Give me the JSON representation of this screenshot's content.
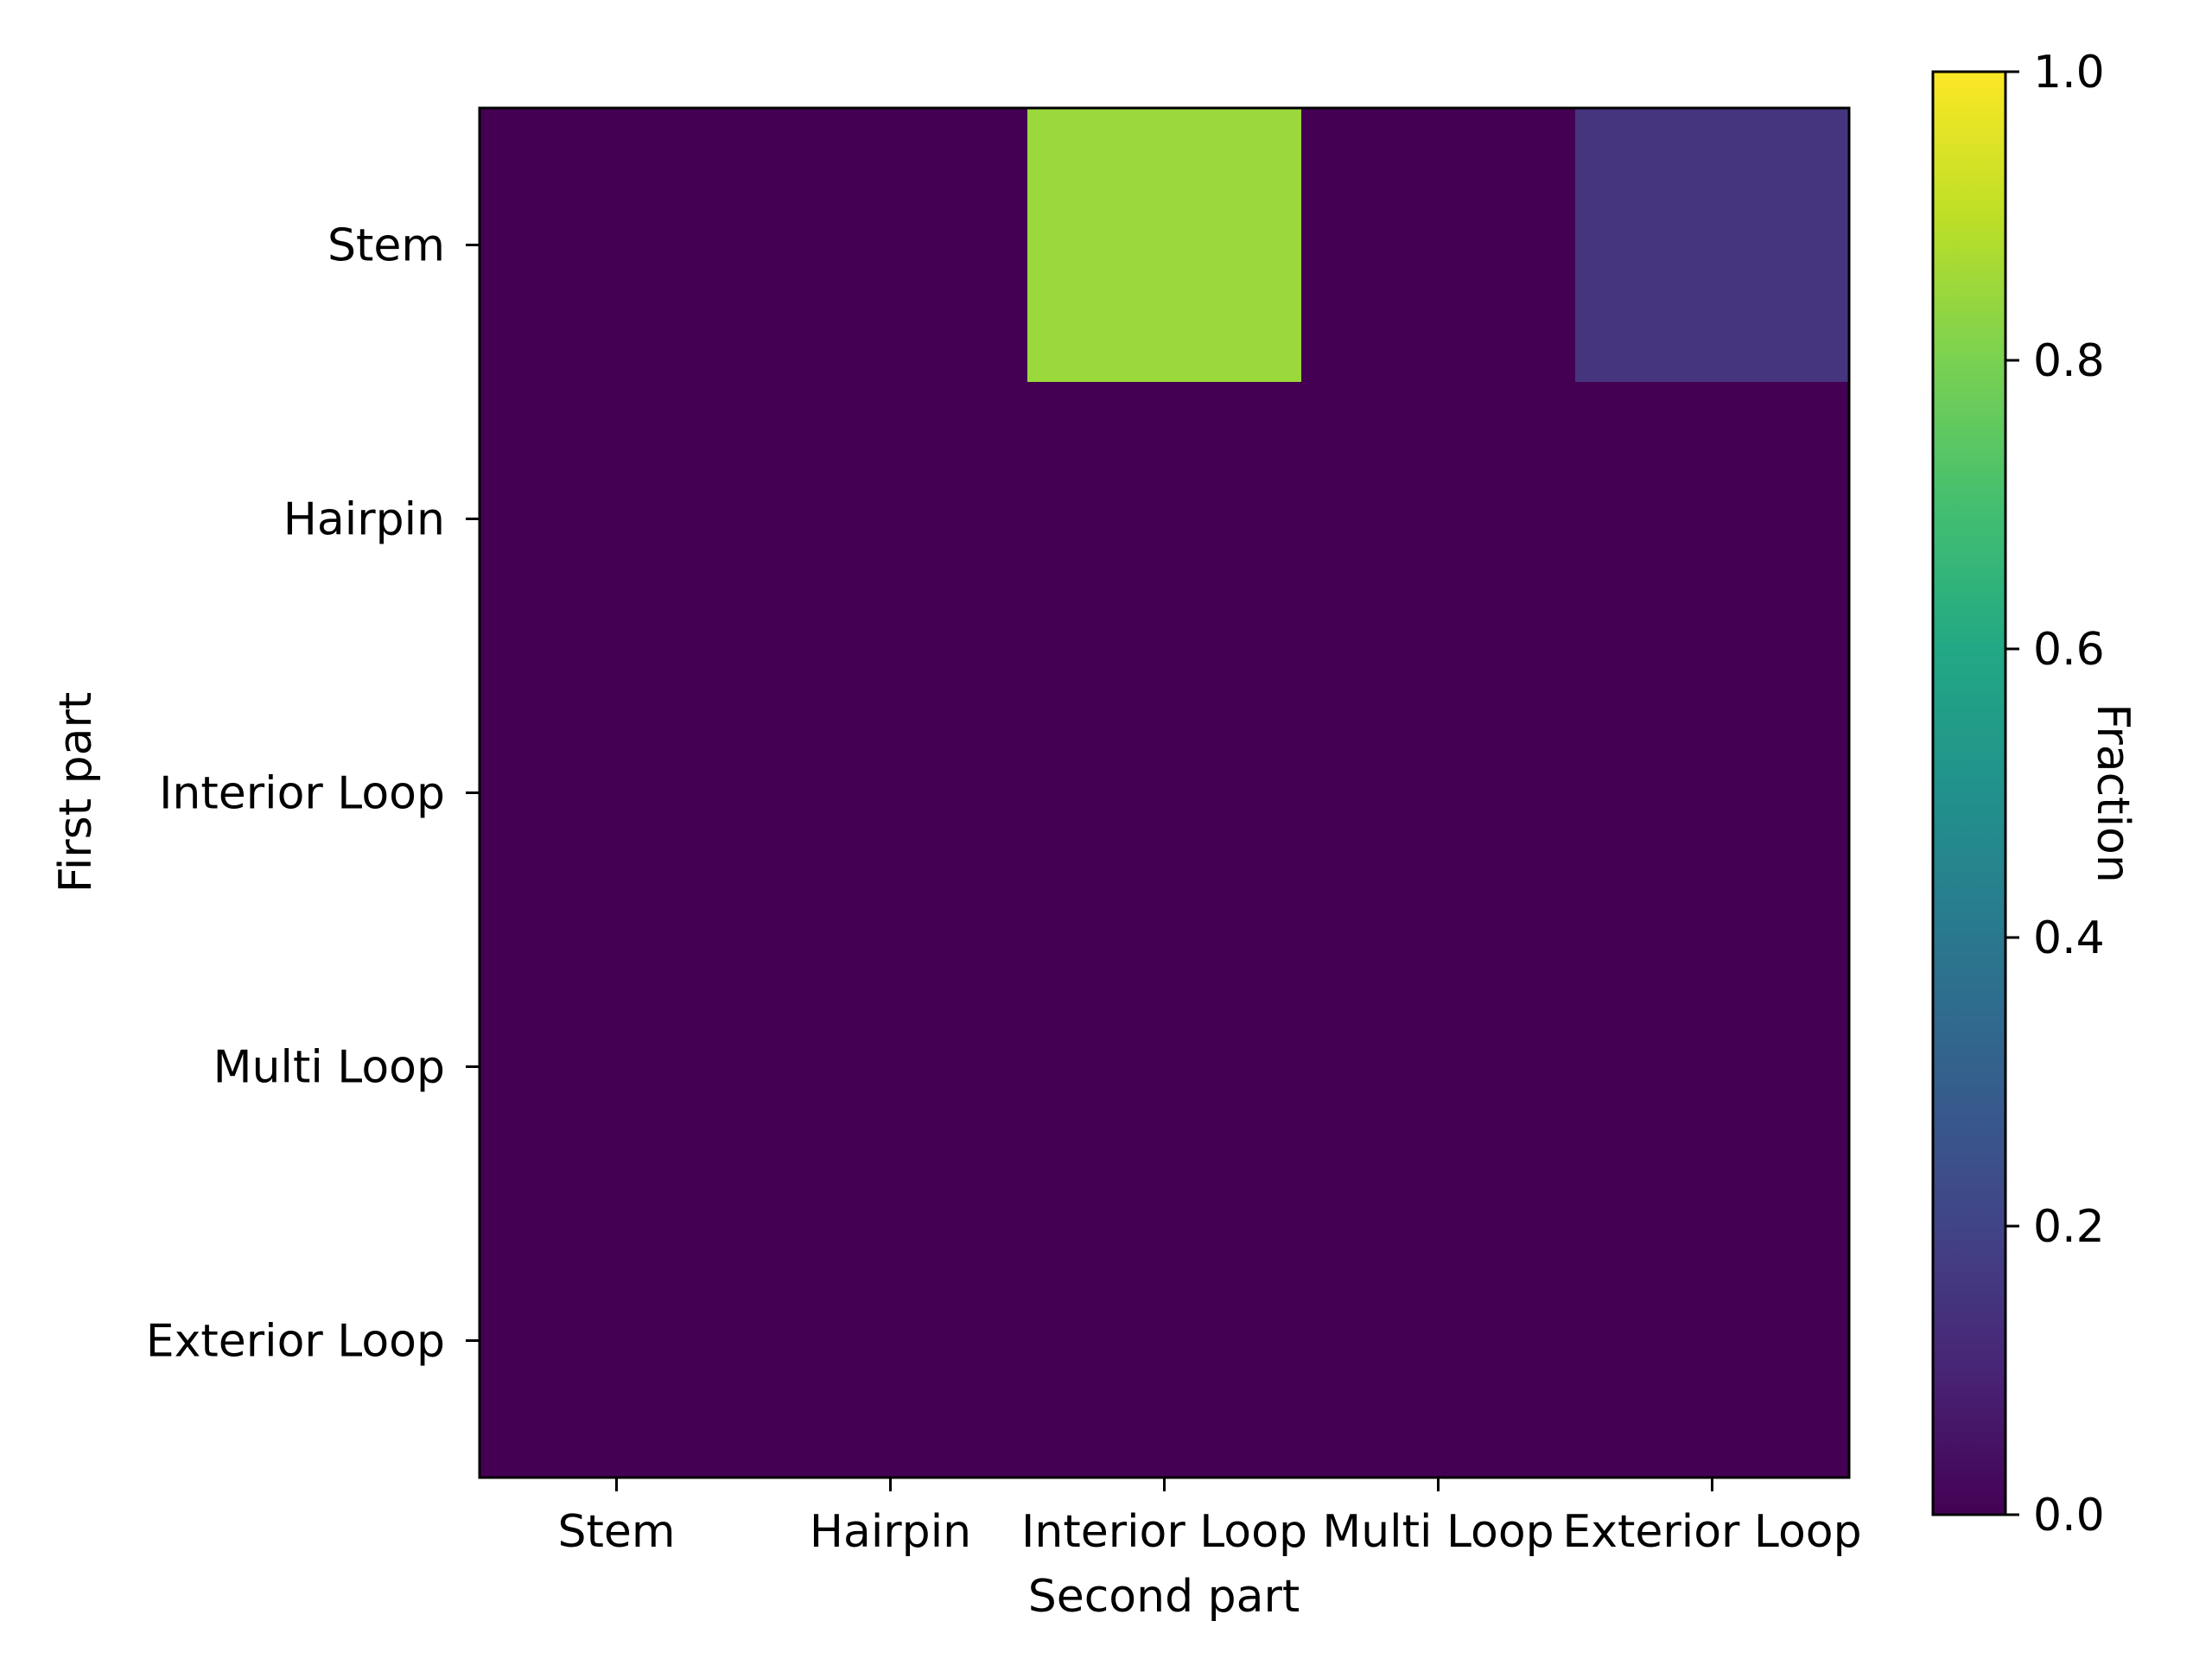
{
  "chart_data": {
    "type": "heatmap",
    "x_categories": [
      "Stem",
      "Hairpin",
      "Interior Loop",
      "Multi Loop",
      "Exterior Loop"
    ],
    "y_categories": [
      "Stem",
      "Hairpin",
      "Interior Loop",
      "Multi Loop",
      "Exterior Loop"
    ],
    "values": [
      [
        0.0,
        0.0,
        0.85,
        0.0,
        0.15
      ],
      [
        0.0,
        0.0,
        0.0,
        0.0,
        0.0
      ],
      [
        0.0,
        0.0,
        0.0,
        0.0,
        0.0
      ],
      [
        0.0,
        0.0,
        0.0,
        0.0,
        0.0
      ],
      [
        0.0,
        0.0,
        0.0,
        0.0,
        0.0
      ]
    ],
    "xlabel": "Second part",
    "ylabel": "First part",
    "colorbar": {
      "label": "Fraction",
      "range": [
        0.0,
        1.0
      ],
      "ticks": [
        "0.0",
        "0.2",
        "0.4",
        "0.6",
        "0.8",
        "1.0"
      ],
      "colormap": "viridis"
    },
    "grid": false
  }
}
